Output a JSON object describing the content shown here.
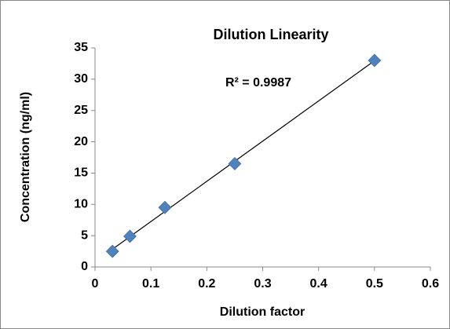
{
  "chart_data": {
    "type": "scatter",
    "title": "Dilution Linearity",
    "x_label": "Dilution factor",
    "y_label": "Concentration (ng/ml)",
    "annotation": "R² = 0.9987",
    "series": [
      {
        "name": "Concentration",
        "color": "#4f81bd",
        "x": [
          0.03125,
          0.0625,
          0.125,
          0.25,
          0.5
        ],
        "values": [
          2.5,
          4.9,
          9.5,
          16.5,
          33
        ]
      }
    ],
    "trendline": true,
    "xlim": [
      0,
      0.6
    ],
    "xticks": [
      0,
      0.1,
      0.2,
      0.3,
      0.4,
      0.5,
      0.6
    ],
    "ylim": [
      0,
      35
    ],
    "yticks": [
      0,
      5,
      10,
      15,
      20,
      25,
      30,
      35
    ],
    "grid": false
  }
}
